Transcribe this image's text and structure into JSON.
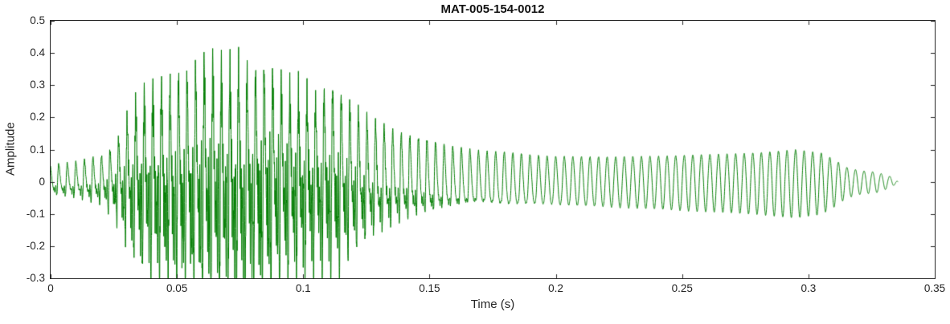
{
  "chart_data": {
    "type": "line",
    "title": "MAT-005-154-0012",
    "xlabel": "Time (s)",
    "ylabel": "Amplitude",
    "xlim": [
      0,
      0.35
    ],
    "ylim": [
      -0.3,
      0.5
    ],
    "x_ticks": [
      0,
      0.05,
      0.1,
      0.15,
      0.2,
      0.25,
      0.3,
      0.35
    ],
    "x_tick_labels": [
      "0",
      "0.05",
      "0.1",
      "0.15",
      "0.2",
      "0.25",
      "0.3",
      "0.35"
    ],
    "y_ticks": [
      -0.3,
      -0.2,
      -0.1,
      0,
      0.1,
      0.2,
      0.3,
      0.4,
      0.5
    ],
    "y_tick_labels": [
      "-0.3",
      "-0.2",
      "-0.1",
      "0",
      "0.1",
      "0.2",
      "0.3",
      "0.4",
      "0.5"
    ],
    "grid": false,
    "line_color": "#007d00",
    "axes_color": "#262626",
    "title_color": "#111111",
    "background": "#ffffff",
    "signal": {
      "duration_s": 0.3355,
      "fundamental_hz": 295,
      "harmonics": 16,
      "harmonic_falloff": 0.3,
      "phase_chirp": 0.35,
      "noise_level": 0.12,
      "negative_gain": 1.15,
      "positive_envelope": [
        [
          0.0,
          0.055
        ],
        [
          0.01,
          0.065
        ],
        [
          0.02,
          0.085
        ],
        [
          0.025,
          0.12
        ],
        [
          0.03,
          0.22
        ],
        [
          0.035,
          0.3
        ],
        [
          0.04,
          0.32
        ],
        [
          0.045,
          0.33
        ],
        [
          0.05,
          0.35
        ],
        [
          0.055,
          0.36
        ],
        [
          0.06,
          0.4
        ],
        [
          0.065,
          0.42
        ],
        [
          0.07,
          0.41
        ],
        [
          0.075,
          0.42
        ],
        [
          0.08,
          0.38
        ],
        [
          0.085,
          0.36
        ],
        [
          0.09,
          0.37
        ],
        [
          0.095,
          0.35
        ],
        [
          0.1,
          0.34
        ],
        [
          0.105,
          0.3
        ],
        [
          0.11,
          0.32
        ],
        [
          0.115,
          0.28
        ],
        [
          0.12,
          0.25
        ],
        [
          0.125,
          0.22
        ],
        [
          0.13,
          0.2
        ],
        [
          0.135,
          0.17
        ],
        [
          0.14,
          0.15
        ],
        [
          0.15,
          0.13
        ],
        [
          0.16,
          0.11
        ],
        [
          0.17,
          0.1
        ],
        [
          0.18,
          0.095
        ],
        [
          0.19,
          0.085
        ],
        [
          0.2,
          0.08
        ],
        [
          0.22,
          0.078
        ],
        [
          0.24,
          0.08
        ],
        [
          0.26,
          0.085
        ],
        [
          0.28,
          0.09
        ],
        [
          0.295,
          0.1
        ],
        [
          0.305,
          0.09
        ],
        [
          0.31,
          0.07
        ],
        [
          0.315,
          0.045
        ],
        [
          0.32,
          0.035
        ],
        [
          0.327,
          0.03
        ],
        [
          0.333,
          0.015
        ],
        [
          0.3355,
          0.0
        ]
      ],
      "brightness_envelope": [
        [
          0.0,
          0.45
        ],
        [
          0.02,
          0.55
        ],
        [
          0.03,
          0.95
        ],
        [
          0.04,
          1.0
        ],
        [
          0.1,
          1.0
        ],
        [
          0.115,
          0.85
        ],
        [
          0.13,
          0.6
        ],
        [
          0.145,
          0.45
        ],
        [
          0.16,
          0.32
        ],
        [
          0.18,
          0.22
        ],
        [
          0.2,
          0.15
        ],
        [
          0.23,
          0.1
        ],
        [
          0.27,
          0.07
        ],
        [
          0.3355,
          0.05
        ]
      ]
    }
  }
}
